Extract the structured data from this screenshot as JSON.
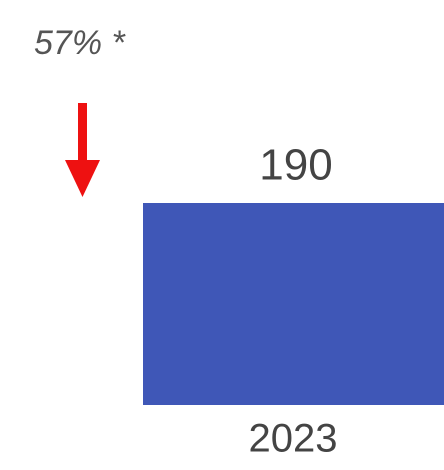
{
  "chart_data": {
    "type": "bar",
    "annotation": "57% *",
    "categories": [
      "2023"
    ],
    "values": [
      190
    ],
    "color": "#3f57b7",
    "ylim": [
      0,
      190
    ]
  }
}
